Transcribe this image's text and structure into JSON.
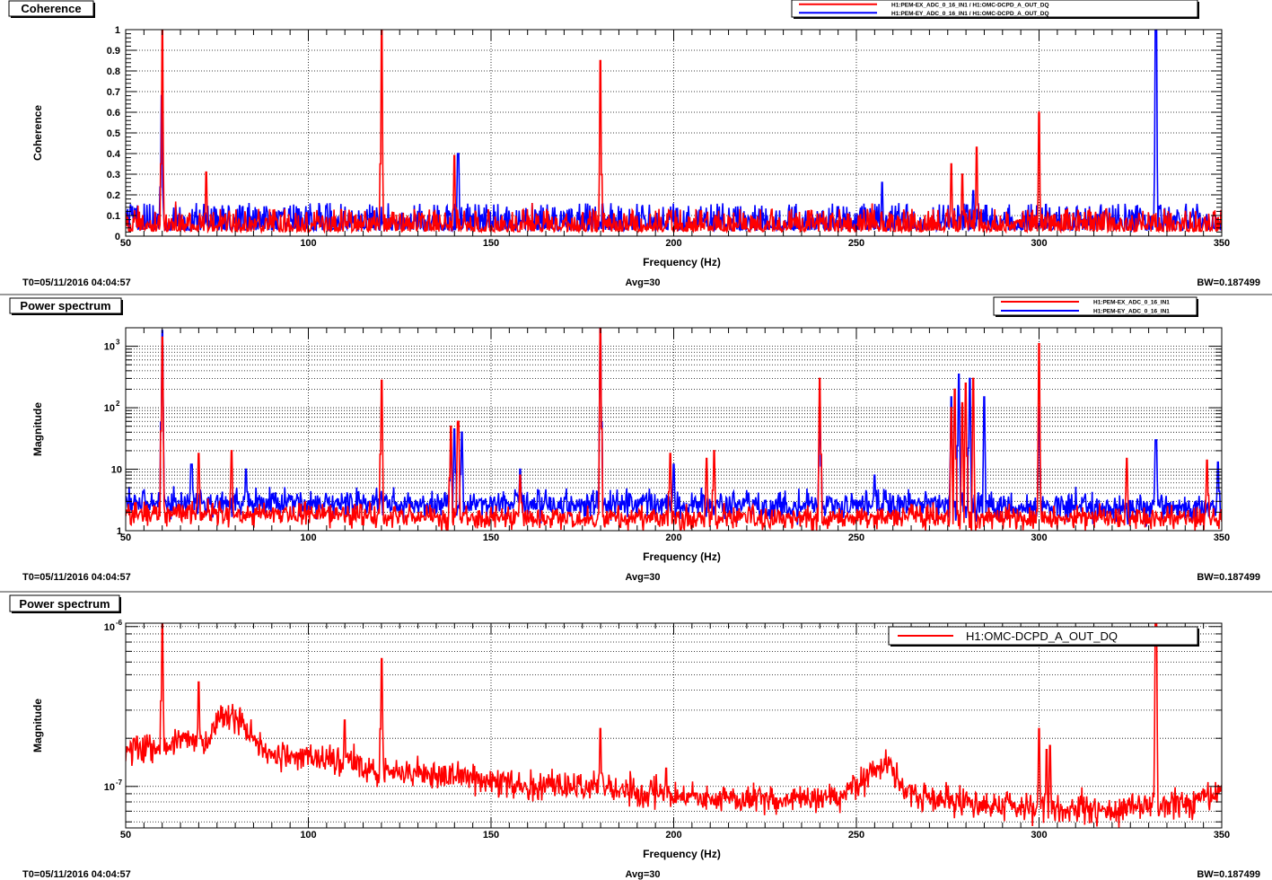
{
  "chart_data": [
    {
      "type": "line",
      "panel_title": "Coherence",
      "ylabel": "Coherence",
      "xlabel": "Frequency (Hz)",
      "xlim": [
        50,
        350
      ],
      "ylim": [
        0,
        1
      ],
      "y_scale": "linear",
      "x_ticks": [
        "50",
        "100",
        "150",
        "200",
        "250",
        "300",
        "350"
      ],
      "y_ticks": [
        "0",
        "0.1",
        "0.2",
        "0.3",
        "0.4",
        "0.5",
        "0.6",
        "0.7",
        "0.8",
        "0.9",
        "1"
      ],
      "grid": true,
      "legend_position": "top-right",
      "legend_font": "small",
      "footer": {
        "left": "T0=05/11/2016 04:04:57",
        "center": "Avg=30",
        "right": "BW=0.187499"
      },
      "series": [
        {
          "name": "H1:PEM-EX_ADC_0_16_IN1 / H1:OMC-DCPD_A_OUT_DQ",
          "color": "#ff0000",
          "baseline": 0.04,
          "noise": 0.05,
          "peaks": [
            [
              60,
              1.0
            ],
            [
              72,
              0.31
            ],
            [
              120,
              1.0
            ],
            [
              140,
              0.39
            ],
            [
              180,
              0.85
            ],
            [
              276,
              0.35
            ],
            [
              279,
              0.3
            ],
            [
              283,
              0.43
            ],
            [
              300,
              0.6
            ]
          ]
        },
        {
          "name": "H1:PEM-EY_ADC_0_16_IN1 / H1:OMC-DCPD_A_OUT_DQ",
          "color": "#0000ff",
          "baseline": 0.05,
          "noise": 0.06,
          "peaks": [
            [
              59.8,
              0.68
            ],
            [
              141,
              0.4
            ],
            [
              257,
              0.26
            ],
            [
              282,
              0.22
            ],
            [
              332,
              1.0
            ]
          ]
        }
      ]
    },
    {
      "type": "line",
      "panel_title": "Power spectrum",
      "ylabel": "Magnitude",
      "xlabel": "Frequency (Hz)",
      "xlim": [
        50,
        350
      ],
      "ylim": [
        1,
        2000
      ],
      "y_scale": "log",
      "x_ticks": [
        "50",
        "100",
        "150",
        "200",
        "250",
        "300",
        "350"
      ],
      "y_ticks": [
        {
          "value": 1,
          "label": "1"
        },
        {
          "value": 10,
          "label": "10"
        },
        {
          "value": 100,
          "label": "10",
          "exp": "2"
        },
        {
          "value": 1000,
          "label": "10",
          "exp": "3"
        }
      ],
      "grid": true,
      "legend_position": "top-right",
      "legend_font": "small",
      "footer": {
        "left": "T0=05/11/2016 04:04:57",
        "center": "Avg=30",
        "right": "BW=0.187499"
      },
      "series": [
        {
          "name": "H1:PEM-EX_ADC_0_16_IN1",
          "color": "#ff0000",
          "baseline": [
            [
              50,
              2.0
            ],
            [
              100,
              1.8
            ],
            [
              150,
              1.6
            ],
            [
              200,
              1.6
            ],
            [
              250,
              1.6
            ],
            [
              275,
              1.7
            ],
            [
              290,
              1.6
            ],
            [
              350,
              1.6
            ]
          ],
          "noise": 0.25,
          "peaks": [
            [
              60,
              1400
            ],
            [
              70,
              18
            ],
            [
              79,
              20
            ],
            [
              120,
              280
            ],
            [
              139,
              50
            ],
            [
              141,
              60
            ],
            [
              158,
              8
            ],
            [
              180,
              2000
            ],
            [
              199,
              18
            ],
            [
              209,
              15
            ],
            [
              211,
              20
            ],
            [
              240,
              300
            ],
            [
              276,
              100
            ],
            [
              277,
              200
            ],
            [
              279,
              120
            ],
            [
              280,
              250
            ],
            [
              282,
              300
            ],
            [
              300,
              1100
            ],
            [
              324,
              15
            ],
            [
              346,
              14
            ]
          ]
        },
        {
          "name": "H1:PEM-EY_ADC_0_16_IN1",
          "color": "#0000ff",
          "baseline": [
            [
              50,
              3.0
            ],
            [
              100,
              2.8
            ],
            [
              150,
              2.6
            ],
            [
              200,
              2.6
            ],
            [
              250,
              2.5
            ],
            [
              270,
              2.7
            ],
            [
              290,
              2.4
            ],
            [
              350,
              2.3
            ]
          ],
          "noise": 0.3,
          "peaks": [
            [
              60,
              1800
            ],
            [
              68,
              12
            ],
            [
              83,
              10
            ],
            [
              139,
              25
            ],
            [
              140,
              45
            ],
            [
              142,
              40
            ],
            [
              158,
              10
            ],
            [
              180,
              2000
            ],
            [
              200,
              12
            ],
            [
              240,
              80
            ],
            [
              255,
              8
            ],
            [
              276,
              150
            ],
            [
              278,
              350
            ],
            [
              281,
              300
            ],
            [
              285,
              150
            ],
            [
              300,
              100
            ],
            [
              332,
              30
            ],
            [
              349,
              13
            ]
          ]
        }
      ]
    },
    {
      "type": "line",
      "panel_title": "Power spectrum",
      "ylabel": "Magnitude",
      "xlabel": "Frequency (Hz)",
      "xlim": [
        50,
        350
      ],
      "ylim": [
        5.5e-08,
        1.05e-06
      ],
      "y_scale": "log",
      "x_ticks": [
        "50",
        "100",
        "150",
        "200",
        "250",
        "300",
        "350"
      ],
      "y_ticks": [
        {
          "value": 1e-07,
          "label": "10",
          "exp": "-7"
        },
        {
          "value": 1e-06,
          "label": "10",
          "exp": "-6"
        }
      ],
      "grid": true,
      "legend_position": "top-right",
      "legend_font": "large",
      "footer": {
        "left": "T0=05/11/2016 04:04:57",
        "center": "Avg=30",
        "right": "BW=0.187499"
      },
      "series": [
        {
          "name": "H1:OMC-DCPD_A_OUT_DQ",
          "color": "#ff0000",
          "baseline": [
            [
              50,
              1.7e-07
            ],
            [
              60,
              1.75e-07
            ],
            [
              67,
              2e-07
            ],
            [
              72,
              1.8e-07
            ],
            [
              76,
              2.8e-07
            ],
            [
              82,
              2.5e-07
            ],
            [
              88,
              1.6e-07
            ],
            [
              100,
              1.5e-07
            ],
            [
              120,
              1.3e-07
            ],
            [
              140,
              1.15e-07
            ],
            [
              160,
              1e-07
            ],
            [
              180,
              1e-07
            ],
            [
              200,
              8.5e-08
            ],
            [
              230,
              8.2e-08
            ],
            [
              245,
              8.5e-08
            ],
            [
              255,
              1.2e-07
            ],
            [
              258,
              1.5e-07
            ],
            [
              262,
              1e-07
            ],
            [
              270,
              8.5e-08
            ],
            [
              290,
              7.5e-08
            ],
            [
              320,
              7.2e-08
            ],
            [
              340,
              7.8e-08
            ],
            [
              350,
              9e-08
            ]
          ],
          "noise": 0.12,
          "peaks": [
            [
              60,
              1.05e-06
            ],
            [
              70,
              4.5e-07
            ],
            [
              110,
              2.6e-07
            ],
            [
              120,
              6.3e-07
            ],
            [
              180,
              2.3e-07
            ],
            [
              198,
              1.3e-07
            ],
            [
              300,
              2.3e-07
            ],
            [
              302,
              1.7e-07
            ],
            [
              303,
              1.8e-07
            ],
            [
              332,
              1.05e-06
            ]
          ]
        }
      ]
    }
  ]
}
